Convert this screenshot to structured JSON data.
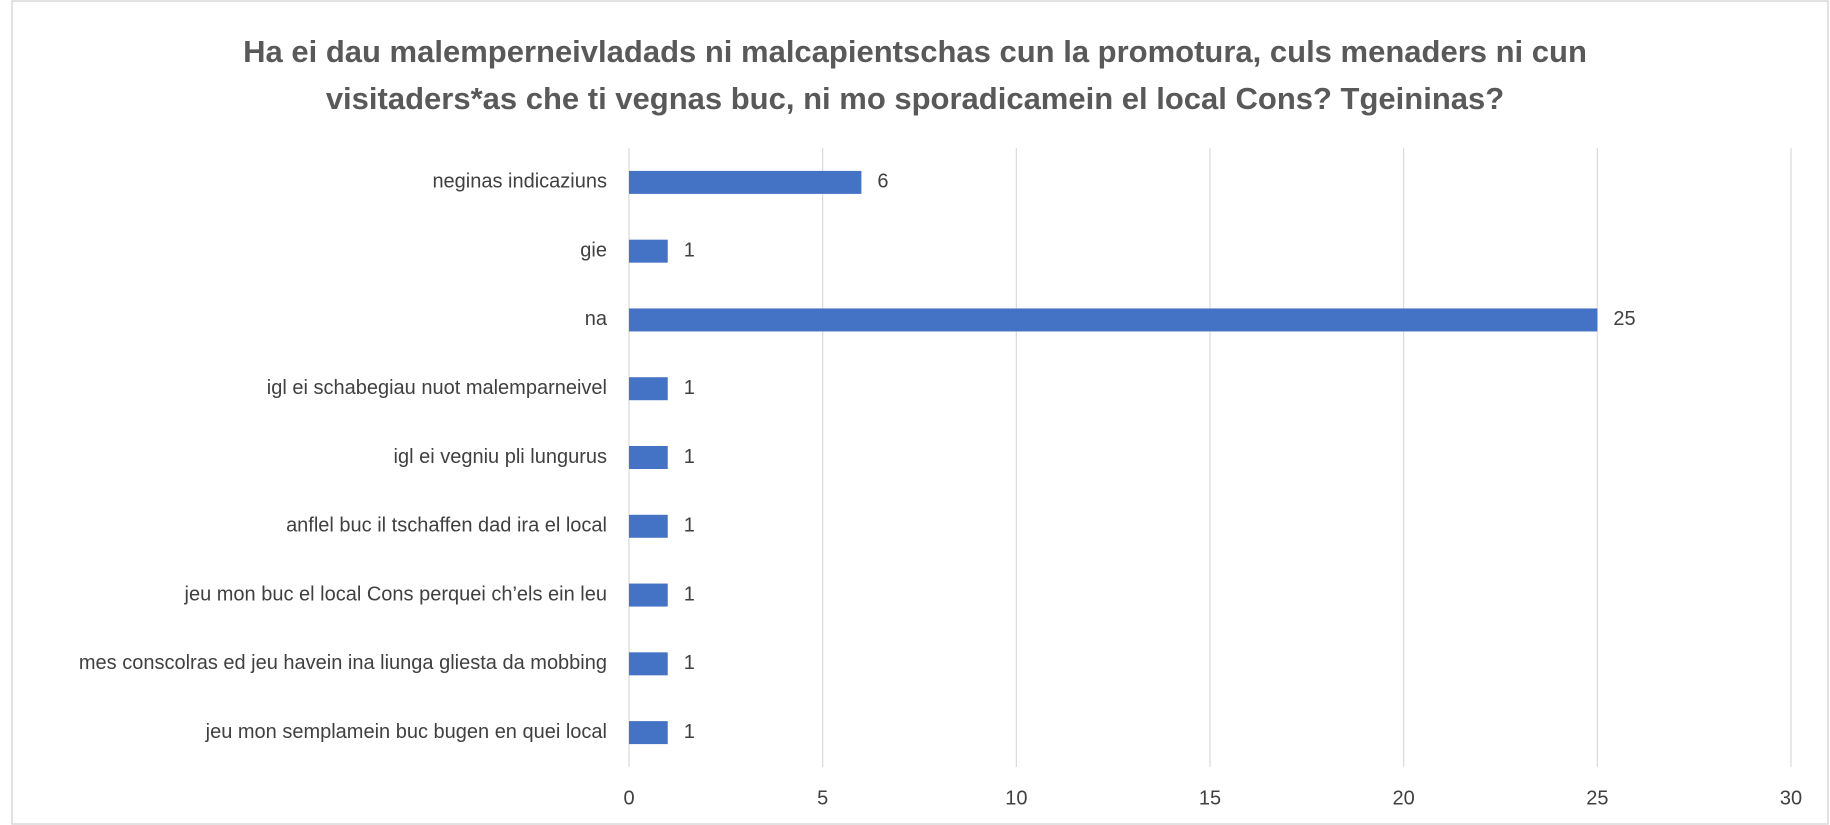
{
  "chart_data": {
    "type": "barh",
    "title": "Ha ei dau malemperneivladads ni malcapientschas cun la promotura, culs menaders ni cun visitaders*as che ti vegnas buc, ni mo sporadicamein el local Cons? Tgeininas?",
    "categories": [
      "neginas indicaziuns",
      "gie",
      "na",
      "igl ei schabegiau nuot malemparneivel",
      "igl ei vegniu pli lungurus",
      "anflel buc il tschaffen dad ira el local",
      "jeu mon buc el local Cons perquei ch’els ein leu",
      "mes conscolras ed jeu havein ina liunga gliesta da mobbing",
      "jeu mon semplamein buc bugen en quei local"
    ],
    "values": [
      6,
      1,
      25,
      1,
      1,
      1,
      1,
      1,
      1
    ],
    "color": "#4472c4",
    "xlim": [
      0,
      30
    ],
    "xticks": [
      0,
      5,
      10,
      15,
      20,
      25,
      30
    ],
    "grid": true
  }
}
